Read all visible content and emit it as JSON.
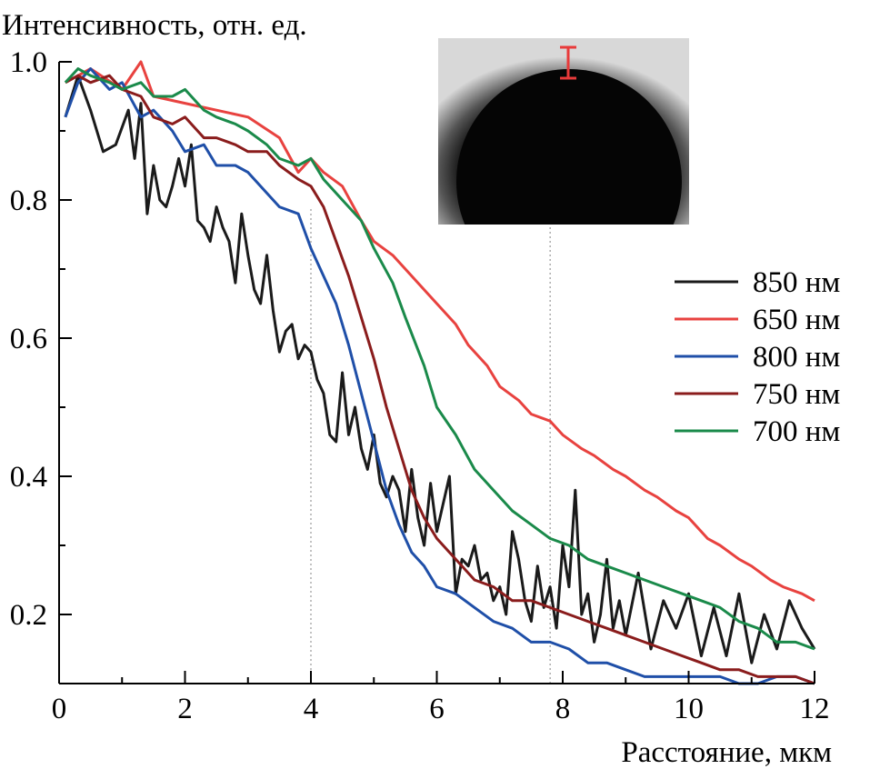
{
  "chart_data": {
    "type": "line",
    "ylabel": "Интенсивность, отн. ед.",
    "xlabel": "Расстояние, мкм",
    "xlim": [
      0,
      12
    ],
    "ylim": [
      0.1,
      1.0
    ],
    "x_ticks": [
      "0",
      "2",
      "4",
      "6",
      "8",
      "10",
      "12"
    ],
    "y_ticks": [
      "0.2",
      "0.4",
      "0.6",
      "0.8",
      "1.0"
    ],
    "grid": false,
    "reference_lines_x": [
      4.0,
      7.8
    ],
    "legend_position": "right",
    "inset": {
      "description": "micrograph of dark circular particle with red scale marker at top edge"
    },
    "series": [
      {
        "name": "850 нм",
        "color": "#1a1a1a",
        "x": [
          0.1,
          0.3,
          0.5,
          0.7,
          0.9,
          1.1,
          1.2,
          1.3,
          1.4,
          1.5,
          1.6,
          1.7,
          1.8,
          1.9,
          2.0,
          2.1,
          2.2,
          2.3,
          2.4,
          2.5,
          2.6,
          2.7,
          2.8,
          2.9,
          3.0,
          3.1,
          3.2,
          3.3,
          3.4,
          3.5,
          3.6,
          3.7,
          3.8,
          3.9,
          4.0,
          4.1,
          4.2,
          4.3,
          4.4,
          4.5,
          4.6,
          4.7,
          4.8,
          4.9,
          5.0,
          5.1,
          5.2,
          5.3,
          5.4,
          5.5,
          5.6,
          5.7,
          5.8,
          5.9,
          6.0,
          6.1,
          6.2,
          6.3,
          6.4,
          6.5,
          6.6,
          6.7,
          6.8,
          6.9,
          7.0,
          7.1,
          7.2,
          7.3,
          7.4,
          7.5,
          7.6,
          7.7,
          7.8,
          7.9,
          8.0,
          8.1,
          8.2,
          8.3,
          8.4,
          8.5,
          8.6,
          8.7,
          8.8,
          8.9,
          9.0,
          9.2,
          9.4,
          9.6,
          9.8,
          10.0,
          10.2,
          10.4,
          10.6,
          10.8,
          11.0,
          11.2,
          11.4,
          11.6,
          11.8,
          12.0
        ],
        "y": [
          0.92,
          0.98,
          0.93,
          0.87,
          0.88,
          0.93,
          0.86,
          0.94,
          0.78,
          0.85,
          0.8,
          0.79,
          0.82,
          0.86,
          0.82,
          0.88,
          0.77,
          0.76,
          0.74,
          0.79,
          0.76,
          0.74,
          0.68,
          0.78,
          0.72,
          0.67,
          0.65,
          0.72,
          0.64,
          0.58,
          0.61,
          0.62,
          0.57,
          0.59,
          0.58,
          0.54,
          0.52,
          0.46,
          0.45,
          0.55,
          0.46,
          0.5,
          0.44,
          0.41,
          0.46,
          0.39,
          0.37,
          0.4,
          0.38,
          0.32,
          0.41,
          0.34,
          0.3,
          0.39,
          0.32,
          0.36,
          0.4,
          0.23,
          0.28,
          0.27,
          0.3,
          0.25,
          0.26,
          0.22,
          0.24,
          0.2,
          0.32,
          0.28,
          0.22,
          0.19,
          0.27,
          0.21,
          0.24,
          0.18,
          0.3,
          0.24,
          0.38,
          0.2,
          0.23,
          0.16,
          0.2,
          0.28,
          0.18,
          0.22,
          0.17,
          0.26,
          0.15,
          0.22,
          0.18,
          0.23,
          0.14,
          0.21,
          0.14,
          0.23,
          0.13,
          0.2,
          0.15,
          0.22,
          0.18,
          0.15
        ]
      },
      {
        "name": "650 нм",
        "color": "#e8423f",
        "x": [
          0.1,
          0.5,
          1.0,
          1.3,
          1.5,
          2.0,
          2.5,
          3.0,
          3.5,
          3.8,
          4.0,
          4.2,
          4.5,
          4.8,
          5.0,
          5.3,
          5.5,
          5.8,
          6.0,
          6.3,
          6.5,
          6.8,
          7.0,
          7.3,
          7.5,
          7.8,
          8.0,
          8.3,
          8.5,
          8.8,
          9.0,
          9.3,
          9.5,
          9.8,
          10.0,
          10.3,
          10.5,
          10.8,
          11.0,
          11.3,
          11.5,
          11.8,
          12.0
        ],
        "y": [
          0.97,
          0.99,
          0.96,
          1.0,
          0.95,
          0.94,
          0.93,
          0.92,
          0.89,
          0.84,
          0.86,
          0.84,
          0.82,
          0.77,
          0.74,
          0.72,
          0.7,
          0.67,
          0.65,
          0.62,
          0.59,
          0.56,
          0.53,
          0.51,
          0.49,
          0.48,
          0.46,
          0.44,
          0.43,
          0.41,
          0.4,
          0.38,
          0.37,
          0.35,
          0.34,
          0.31,
          0.3,
          0.28,
          0.27,
          0.25,
          0.24,
          0.23,
          0.22
        ]
      },
      {
        "name": "800 нм",
        "color": "#1f4fa8",
        "x": [
          0.1,
          0.3,
          0.5,
          0.8,
          1.0,
          1.3,
          1.5,
          1.8,
          2.0,
          2.3,
          2.5,
          2.8,
          3.0,
          3.3,
          3.5,
          3.8,
          4.0,
          4.2,
          4.4,
          4.6,
          4.8,
          5.0,
          5.2,
          5.4,
          5.6,
          5.8,
          6.0,
          6.3,
          6.6,
          6.9,
          7.2,
          7.5,
          7.8,
          8.1,
          8.4,
          8.7,
          9.0,
          9.3,
          9.6,
          9.9,
          10.2,
          10.5,
          10.8,
          11.1,
          11.4,
          11.7,
          12.0
        ],
        "y": [
          0.92,
          0.97,
          0.99,
          0.96,
          0.97,
          0.92,
          0.93,
          0.9,
          0.87,
          0.88,
          0.85,
          0.85,
          0.84,
          0.81,
          0.79,
          0.78,
          0.73,
          0.69,
          0.65,
          0.59,
          0.52,
          0.45,
          0.38,
          0.33,
          0.29,
          0.27,
          0.24,
          0.23,
          0.21,
          0.19,
          0.18,
          0.16,
          0.16,
          0.15,
          0.13,
          0.13,
          0.12,
          0.11,
          0.11,
          0.11,
          0.11,
          0.11,
          0.1,
          0.1,
          0.11,
          0.11,
          0.1
        ]
      },
      {
        "name": "750 нм",
        "color": "#8a1c1c",
        "x": [
          0.1,
          0.3,
          0.5,
          0.8,
          1.0,
          1.3,
          1.5,
          1.8,
          2.0,
          2.3,
          2.5,
          2.8,
          3.0,
          3.3,
          3.5,
          3.8,
          4.0,
          4.2,
          4.4,
          4.6,
          4.8,
          5.0,
          5.2,
          5.4,
          5.6,
          5.8,
          6.0,
          6.3,
          6.6,
          6.9,
          7.2,
          7.5,
          7.8,
          8.1,
          8.4,
          8.7,
          9.0,
          9.3,
          9.6,
          9.9,
          10.2,
          10.5,
          10.8,
          11.1,
          11.4,
          11.7,
          12.0
        ],
        "y": [
          0.97,
          0.98,
          0.97,
          0.98,
          0.96,
          0.95,
          0.92,
          0.91,
          0.92,
          0.89,
          0.89,
          0.88,
          0.87,
          0.87,
          0.85,
          0.83,
          0.82,
          0.79,
          0.74,
          0.69,
          0.63,
          0.57,
          0.5,
          0.44,
          0.38,
          0.34,
          0.31,
          0.28,
          0.25,
          0.24,
          0.22,
          0.22,
          0.21,
          0.2,
          0.19,
          0.18,
          0.17,
          0.16,
          0.15,
          0.14,
          0.13,
          0.12,
          0.12,
          0.11,
          0.11,
          0.11,
          0.1
        ]
      },
      {
        "name": "700 нм",
        "color": "#1a8a4a",
        "x": [
          0.1,
          0.3,
          0.5,
          0.8,
          1.0,
          1.3,
          1.5,
          1.8,
          2.0,
          2.3,
          2.5,
          2.8,
          3.0,
          3.3,
          3.5,
          3.8,
          4.0,
          4.2,
          4.5,
          4.8,
          5.0,
          5.3,
          5.5,
          5.8,
          6.0,
          6.3,
          6.6,
          6.9,
          7.2,
          7.5,
          7.8,
          8.1,
          8.4,
          8.7,
          9.0,
          9.3,
          9.6,
          9.9,
          10.2,
          10.5,
          10.8,
          11.1,
          11.4,
          11.7,
          12.0
        ],
        "y": [
          0.97,
          0.99,
          0.98,
          0.97,
          0.96,
          0.97,
          0.95,
          0.95,
          0.96,
          0.93,
          0.92,
          0.91,
          0.9,
          0.88,
          0.86,
          0.85,
          0.86,
          0.83,
          0.8,
          0.77,
          0.73,
          0.68,
          0.63,
          0.56,
          0.5,
          0.46,
          0.41,
          0.38,
          0.35,
          0.33,
          0.31,
          0.3,
          0.28,
          0.27,
          0.26,
          0.25,
          0.24,
          0.23,
          0.22,
          0.21,
          0.19,
          0.18,
          0.16,
          0.16,
          0.15
        ]
      }
    ]
  }
}
